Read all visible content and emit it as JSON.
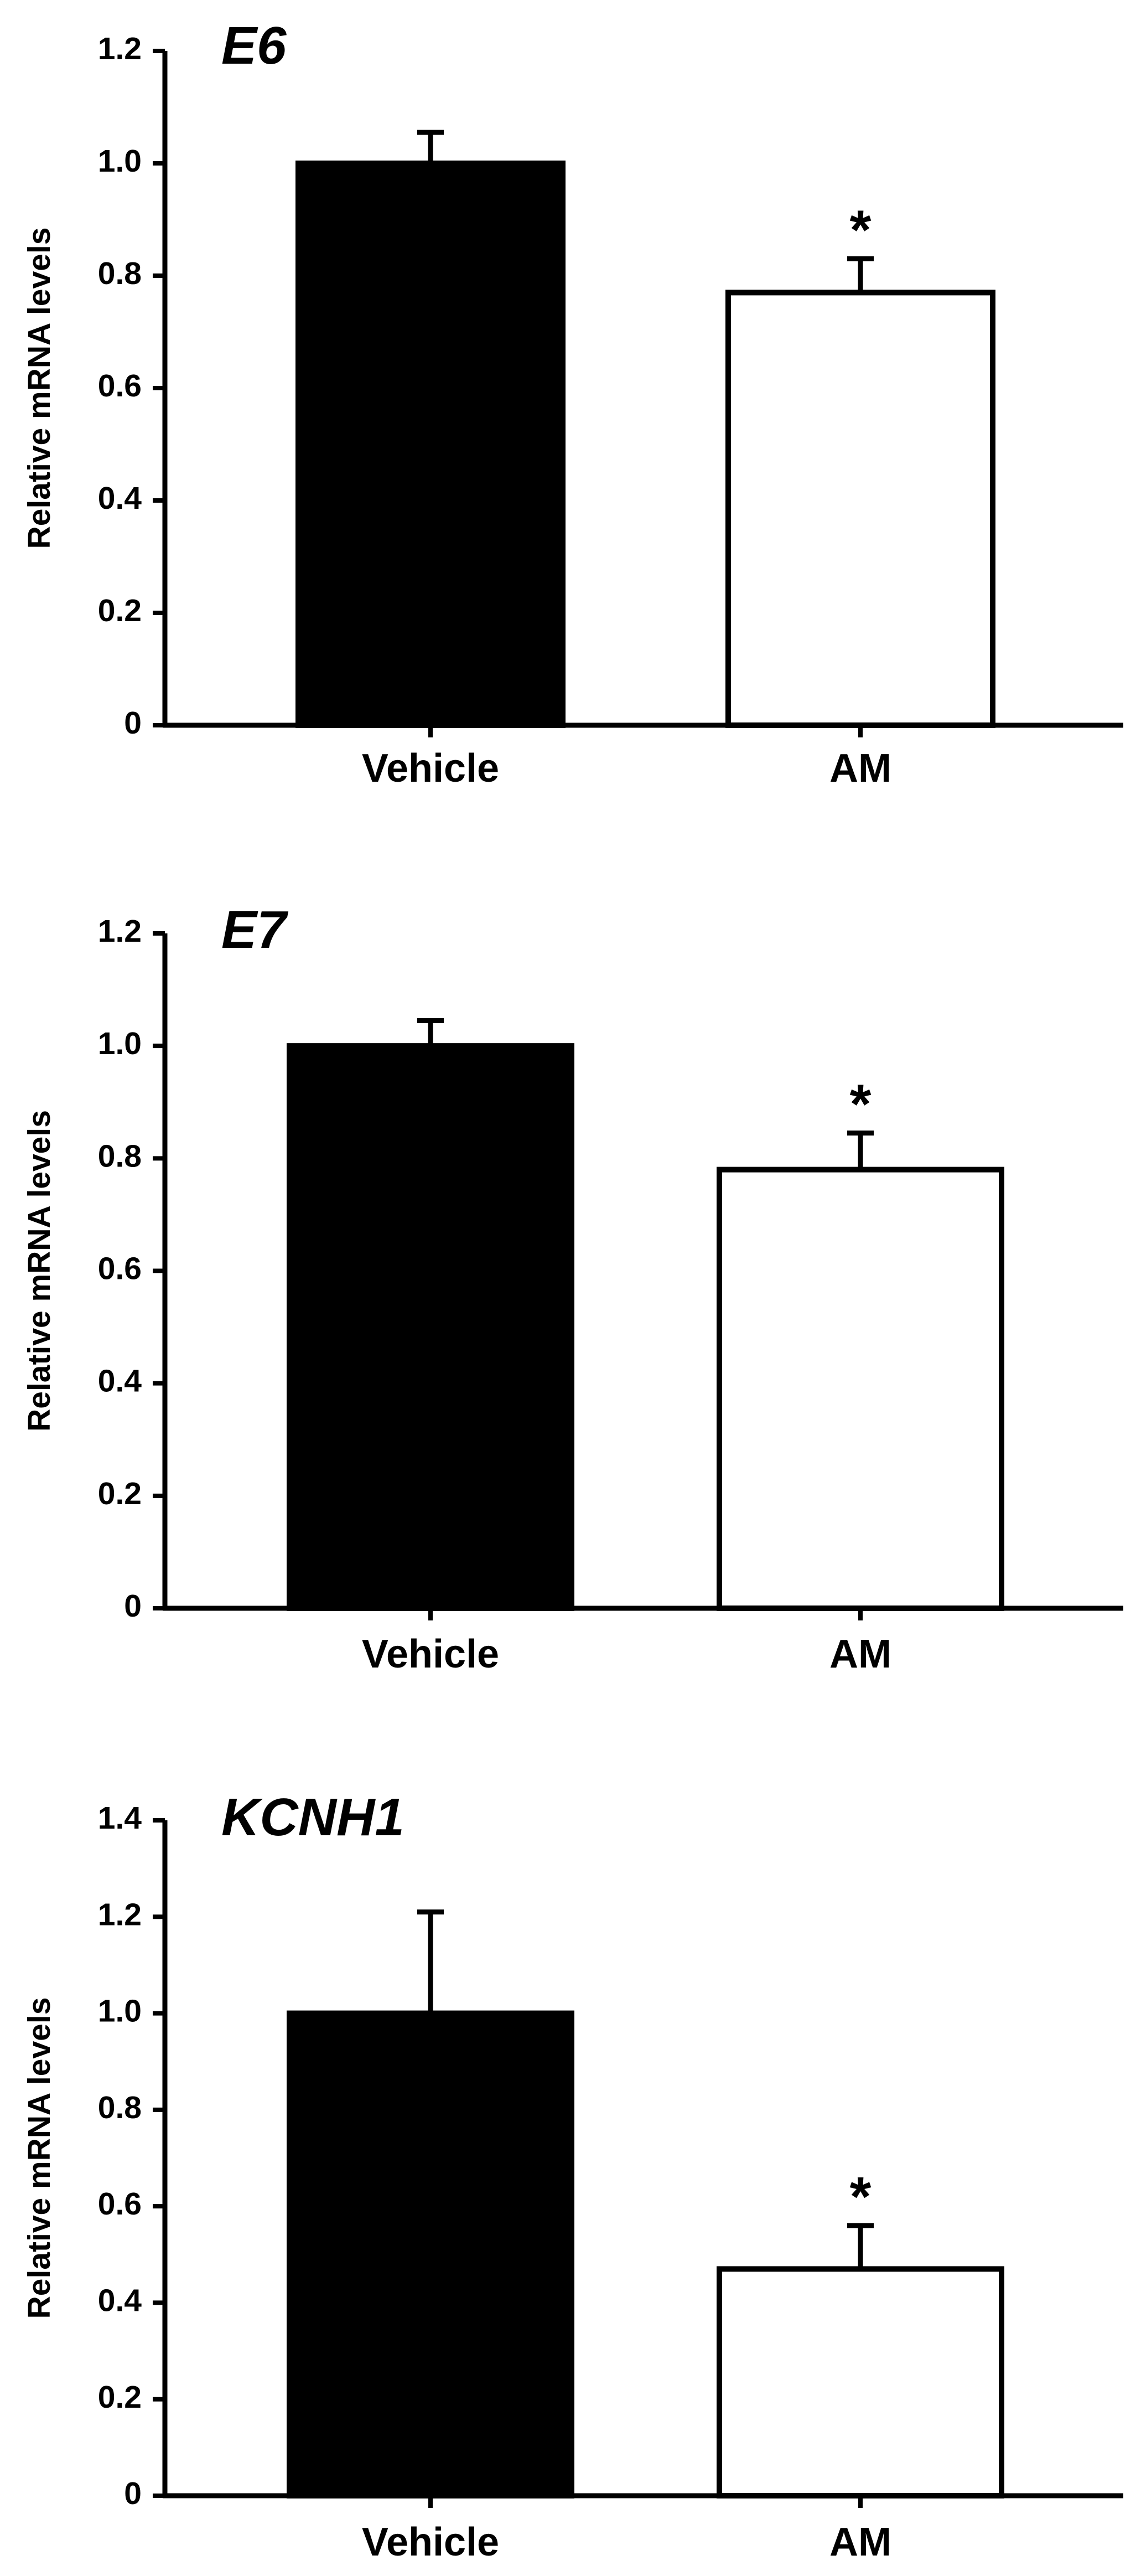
{
  "chart_data": [
    {
      "type": "bar",
      "title": "E6",
      "ylabel": "Relative mRNA levels",
      "xlabel": "",
      "categories": [
        "Vehicle",
        "AM"
      ],
      "values": [
        1.0,
        0.77
      ],
      "errors": [
        0.055,
        0.06
      ],
      "significance": [
        "",
        "*"
      ],
      "bar_fill": [
        "#000000",
        "#ffffff"
      ],
      "ylim": [
        0,
        1.2
      ],
      "yticks": [
        "0",
        "0.2",
        "0.4",
        "0.6",
        "0.8",
        "1.0",
        "1.2"
      ],
      "grid": false
    },
    {
      "type": "bar",
      "title": "E7",
      "ylabel": "Relative mRNA levels",
      "xlabel": "",
      "categories": [
        "Vehicle",
        "AM"
      ],
      "values": [
        1.0,
        0.78
      ],
      "errors": [
        0.045,
        0.065
      ],
      "significance": [
        "",
        "*"
      ],
      "bar_fill": [
        "#000000",
        "#ffffff"
      ],
      "ylim": [
        0,
        1.2
      ],
      "yticks": [
        "0",
        "0.2",
        "0.4",
        "0.6",
        "0.8",
        "1.0",
        "1.2"
      ],
      "grid": false
    },
    {
      "type": "bar",
      "title": "KCNH1",
      "ylabel": "Relative mRNA levels",
      "xlabel": "",
      "categories": [
        "Vehicle",
        "AM"
      ],
      "values": [
        1.0,
        0.47
      ],
      "errors": [
        0.21,
        0.09
      ],
      "significance": [
        "",
        "*"
      ],
      "bar_fill": [
        "#000000",
        "#ffffff"
      ],
      "ylim": [
        0,
        1.4
      ],
      "yticks": [
        "0",
        "0.2",
        "0.4",
        "0.6",
        "0.8",
        "1.0",
        "1.2",
        "1.4"
      ],
      "grid": false
    }
  ]
}
